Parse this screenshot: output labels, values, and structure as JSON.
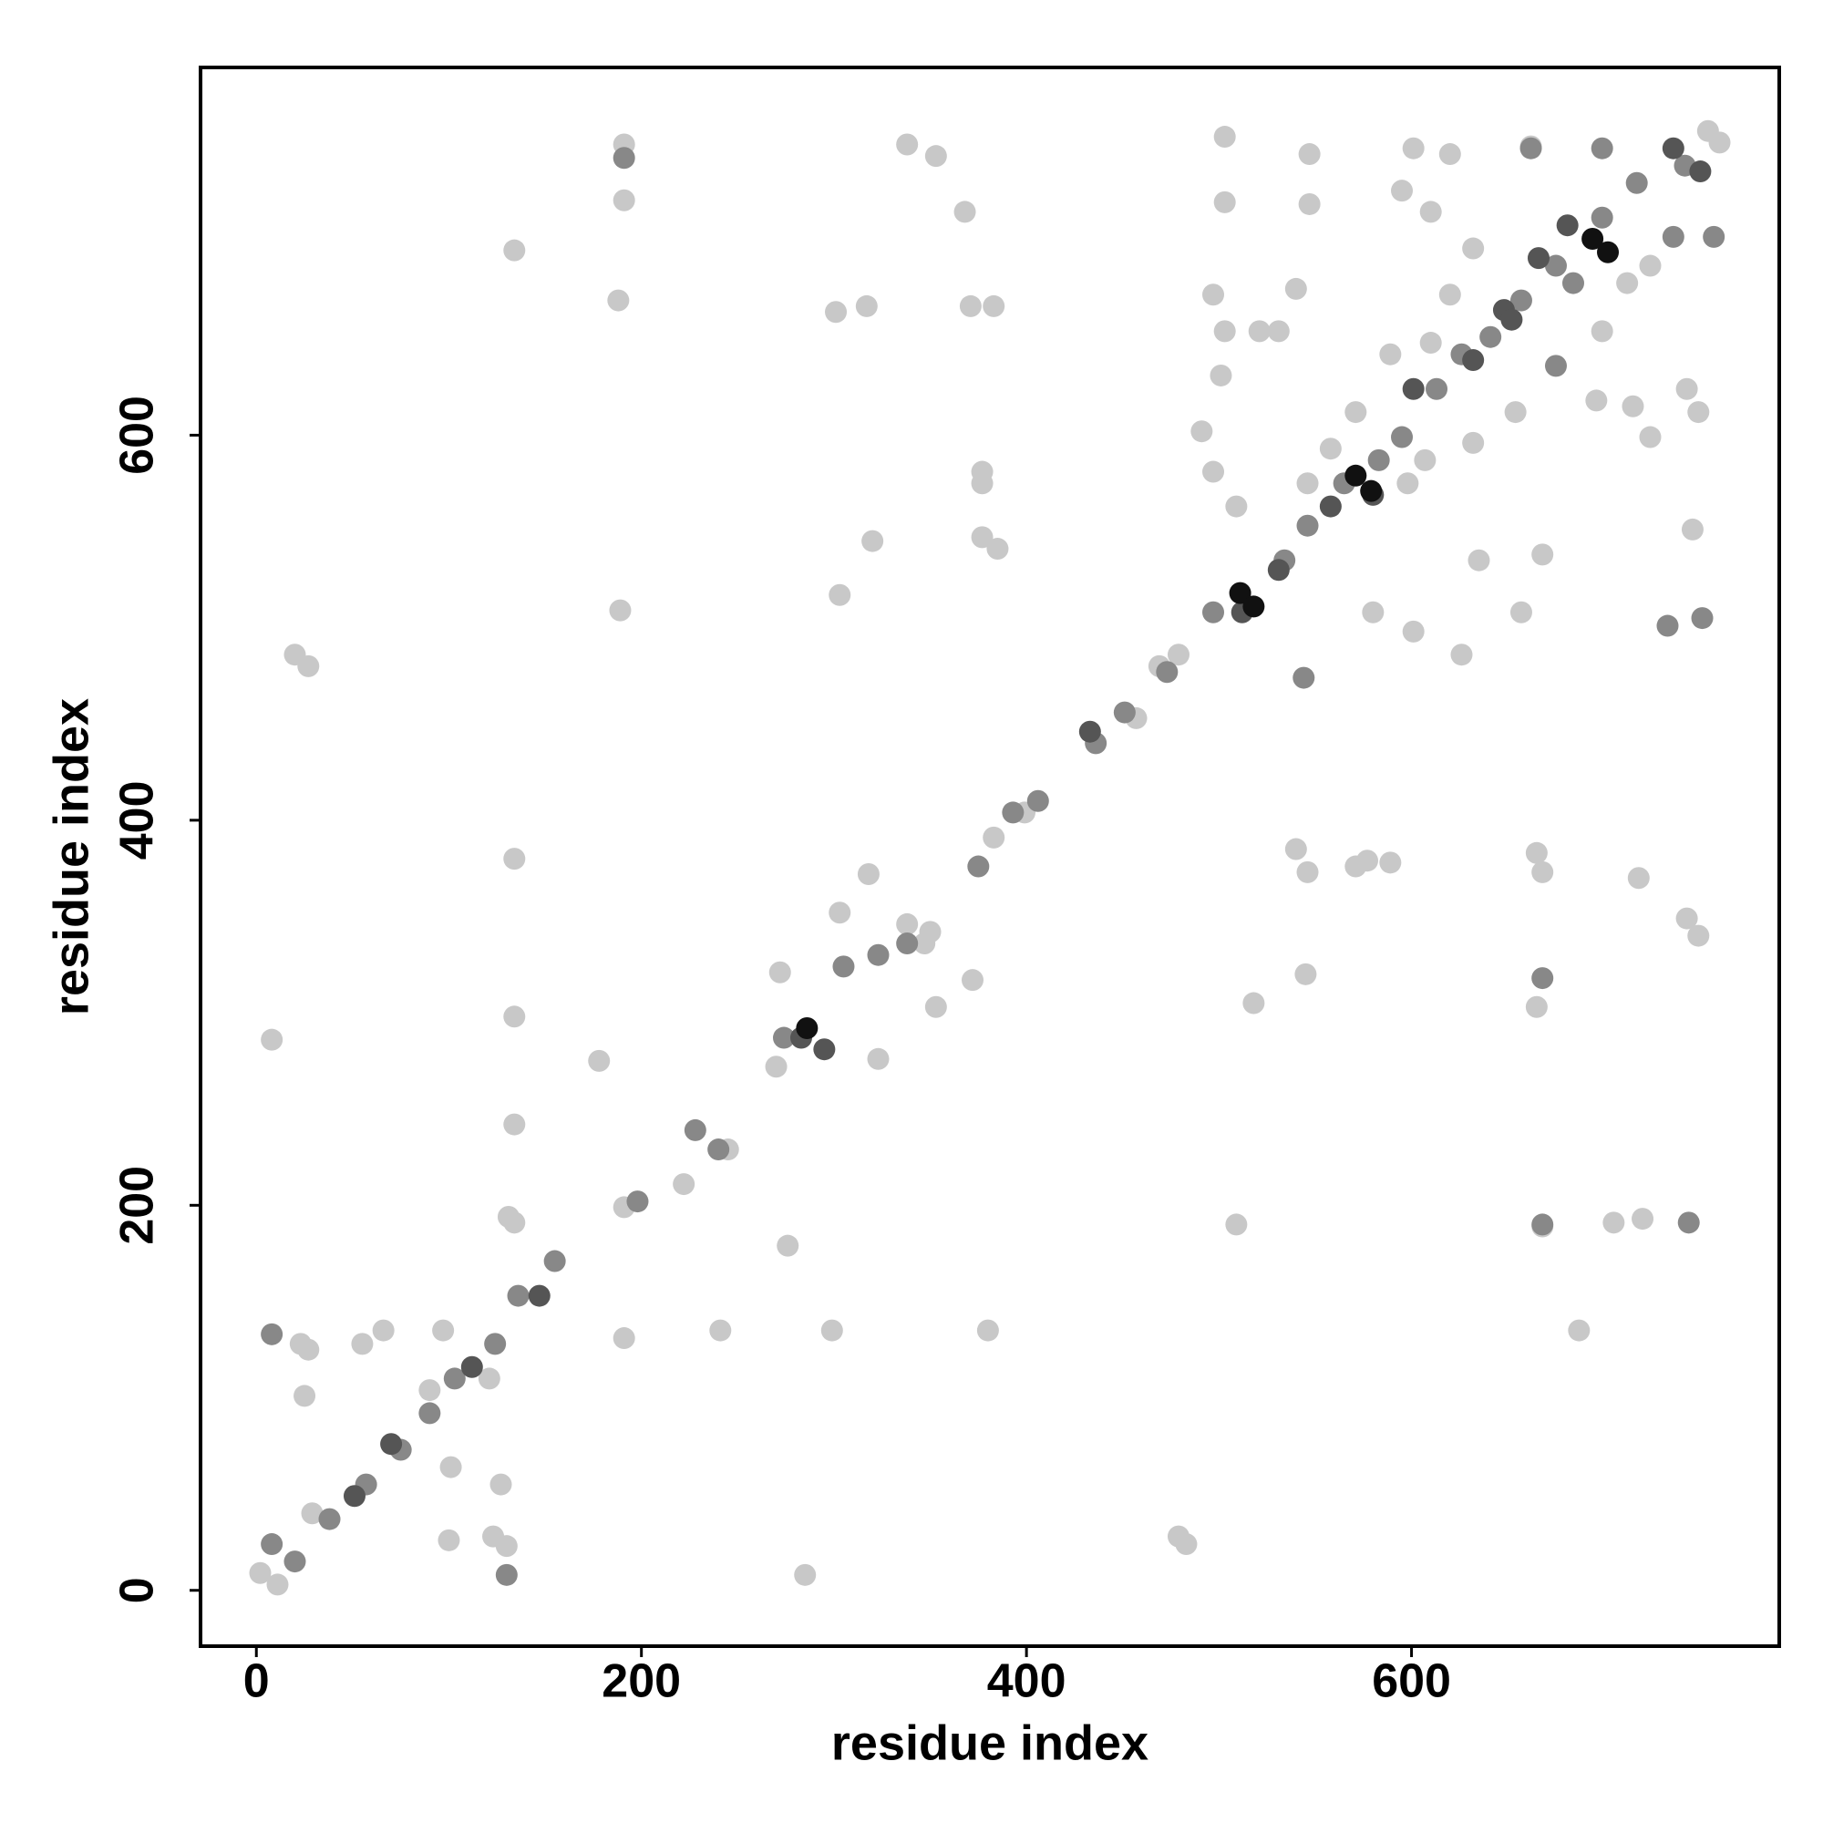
{
  "chart_data": {
    "type": "scatter",
    "x_label": "residue index",
    "y_label": "residue index",
    "xlim": [
      -29,
      791
    ],
    "ylim": [
      -29,
      791
    ],
    "xticks": [
      0,
      200,
      400,
      600
    ],
    "yticks": [
      0,
      200,
      400,
      600
    ],
    "grid": false,
    "series": [
      {
        "color": "#c8c8c8",
        "x": [
          8,
          191,
          191,
          188,
          134,
          134,
          134,
          134,
          134,
          20,
          27,
          189,
          338,
          353,
          368,
          371,
          383,
          377,
          377,
          377,
          385,
          317,
          301,
          303,
          320,
          318,
          303,
          372,
          380,
          241,
          276,
          299,
          285,
          178,
          483,
          479,
          503,
          503,
          547,
          547,
          503,
          521,
          540,
          531,
          540,
          546,
          577,
          589,
          571,
          545,
          518,
          509,
          491,
          497,
          509,
          601,
          620,
          595,
          610,
          632,
          662,
          668,
          665,
          668,
          665,
          668,
          705,
          720,
          718,
          743,
          749,
          746,
          749,
          743,
          699,
          712,
          724,
          754,
          760,
          598,
          607,
          632,
          580,
          601,
          626,
          635,
          657,
          687,
          696,
          715,
          724,
          654,
          620,
          610,
          589,
          571,
          558,
          546,
          2,
          11,
          29,
          90,
          121,
          97,
          23,
          27,
          25,
          55,
          66,
          101,
          100,
          123,
          130,
          127,
          131,
          222,
          191,
          191,
          245,
          272,
          270,
          323,
          353,
          347,
          338,
          350,
          399,
          383,
          457,
          469,
          479,
          501,
          497
        ],
        "y": [
          286,
          751,
          722,
          670,
          696,
          380,
          298,
          242,
          191,
          486,
          480,
          509,
          751,
          745,
          716,
          667,
          667,
          581,
          575,
          547,
          541,
          667,
          664,
          517,
          545,
          372,
          352,
          317,
          135,
          135,
          179,
          135,
          8,
          275,
          24,
          28,
          755,
          721,
          746,
          720,
          654,
          654,
          676,
          654,
          385,
          373,
          379,
          378,
          376,
          320,
          305,
          190,
          602,
          581,
          563,
          749,
          746,
          727,
          716,
          697,
          750,
          538,
          383,
          373,
          303,
          189,
          191,
          193,
          370,
          349,
          340,
          551,
          612,
          624,
          654,
          679,
          688,
          758,
          752,
          575,
          587,
          596,
          508,
          498,
          486,
          535,
          508,
          135,
          618,
          615,
          599,
          612,
          673,
          648,
          642,
          612,
          593,
          575,
          9,
          3,
          40,
          104,
          110,
          135,
          128,
          125,
          101,
          128,
          135,
          64,
          26,
          28,
          23,
          55,
          194,
          211,
          199,
          131,
          229,
          321,
          272,
          276,
          303,
          336,
          346,
          342,
          404,
          391,
          453,
          480,
          486,
          631,
          673
        ]
      },
      {
        "color": "#888888",
        "x": [
          8,
          20,
          38,
          57,
          75,
          90,
          103,
          124,
          136,
          155,
          198,
          228,
          240,
          274,
          305,
          323,
          338,
          375,
          393,
          406,
          436,
          451,
          473,
          497,
          534,
          546,
          565,
          583,
          595,
          613,
          626,
          641,
          657,
          675,
          699,
          717,
          742,
          757,
          736,
          684,
          8,
          191,
          130,
          744,
          668,
          733,
          751,
          544,
          675,
          668,
          662,
          699
        ],
        "y": [
          24,
          15,
          37,
          55,
          73,
          92,
          110,
          128,
          153,
          171,
          202,
          239,
          229,
          287,
          324,
          330,
          336,
          376,
          404,
          410,
          440,
          456,
          477,
          508,
          535,
          553,
          575,
          587,
          599,
          624,
          642,
          651,
          670,
          688,
          713,
          731,
          740,
          703,
          703,
          679,
          133,
          744,
          8,
          191,
          190,
          501,
          505,
          474,
          636,
          318,
          749,
          749
        ]
      },
      {
        "color": "#555555",
        "x": [
          531,
          558,
          632,
          648,
          666,
          681,
          736,
          750,
          51,
          70,
          112,
          147,
          283,
          295,
          433,
          580,
          512,
          652,
          601
        ],
        "y": [
          530,
          563,
          639,
          665,
          692,
          709,
          749,
          737,
          49,
          76,
          116,
          153,
          287,
          281,
          446,
          569,
          508,
          660,
          624
        ]
      },
      {
        "color": "#111111",
        "x": [
          571,
          579,
          511,
          518,
          694,
          702,
          286
        ],
        "y": [
          579,
          571,
          518,
          511,
          702,
          695,
          292
        ]
      }
    ]
  }
}
